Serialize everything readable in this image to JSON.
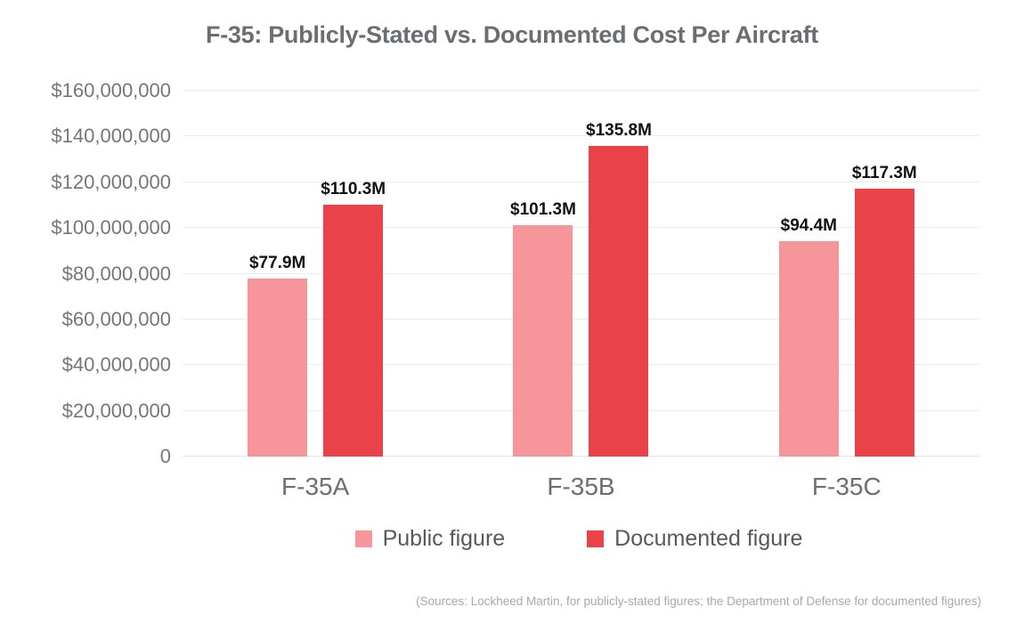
{
  "chart_data": {
    "type": "bar",
    "title": "F-35: Publicly-Stated vs. Documented Cost Per Aircraft",
    "categories": [
      "F-35A",
      "F-35B",
      "F-35C"
    ],
    "series": [
      {
        "name": "Public figure",
        "color": "#f6969b",
        "values": [
          77900000,
          101300000,
          94400000
        ],
        "labels": [
          "$77.9M",
          "$101.3M",
          "$94.4M"
        ]
      },
      {
        "name": "Documented figure",
        "color": "#e94248",
        "values": [
          110300000,
          135800000,
          117300000
        ],
        "labels": [
          "$110.3M",
          "$135.8M",
          "$117.3M"
        ]
      }
    ],
    "ylim": [
      0,
      160000000
    ],
    "ytick_step": 20000000,
    "ytick_labels": [
      "0",
      "$20,000,000",
      "$40,000,000",
      "$60,000,000",
      "$80,000,000",
      "$100,000,000",
      "$120,000,000",
      "$140,000,000",
      "$160,000,000"
    ],
    "grid": true,
    "legend_position": "bottom",
    "source_note": "(Sources: Lockheed Martin, for publicly-stated figures; the Department of Defense for documented figures)"
  },
  "style": {
    "grid_color": "#ececec",
    "baseline_color": "#e2e2e2",
    "title_color": "#696e73",
    "ytick_color": "#767676",
    "xtick_color": "#6e6e6e",
    "value_label_color": "#111111",
    "legend_text_color": "#58595b",
    "source_color": "#a9a9a9"
  }
}
